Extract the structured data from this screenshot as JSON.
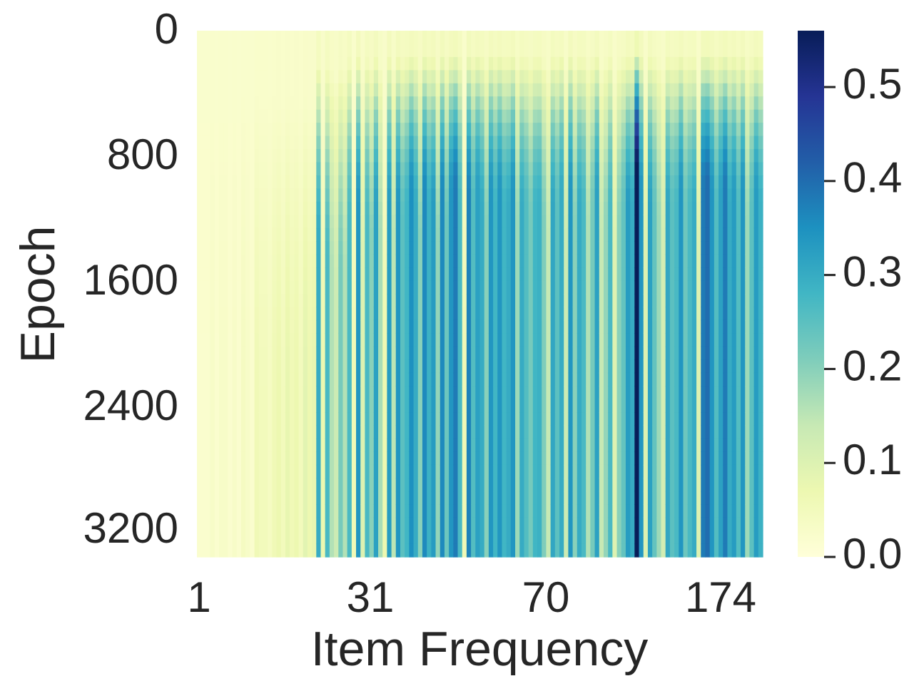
{
  "chart_data": {
    "type": "heatmap",
    "xlabel": "Item Frequency",
    "ylabel": "Epoch",
    "x_tick_labels": [
      "1",
      "31",
      "70",
      "174"
    ],
    "y_tick_labels": [
      "0",
      "800",
      "1600",
      "2400",
      "3200"
    ],
    "colorbar": {
      "colormap": "YlGnBu",
      "range": [
        0.0,
        0.56
      ],
      "tick_labels": [
        "0.0",
        "0.1",
        "0.2",
        "0.3",
        "0.4",
        "0.5"
      ],
      "tick_values": [
        0.0,
        0.1,
        0.2,
        0.3,
        0.4,
        0.5
      ]
    },
    "epoch_range": [
      0,
      3400
    ],
    "column_final_values": [
      0.02,
      0.02,
      0.02,
      0.03,
      0.02,
      0.03,
      0.03,
      0.02,
      0.03,
      0.02,
      0.04,
      0.03,
      0.02,
      0.06,
      0.05,
      0.05,
      0.04,
      0.06,
      0.07,
      0.05,
      0.08,
      0.06,
      0.07,
      0.05,
      0.09,
      0.07,
      0.08,
      0.3,
      0.07,
      0.27,
      0.16,
      0.13,
      0.22,
      0.16,
      0.27,
      0.06,
      0.34,
      0.1,
      0.27,
      0.2,
      0.32,
      0.17,
      0.07,
      0.33,
      0.15,
      0.34,
      0.25,
      0.28,
      0.35,
      0.3,
      0.2,
      0.36,
      0.29,
      0.33,
      0.19,
      0.36,
      0.23,
      0.34,
      0.38,
      0.27,
      0.06,
      0.37,
      0.26,
      0.32,
      0.3,
      0.2,
      0.34,
      0.28,
      0.34,
      0.28,
      0.3,
      0.34,
      0.18,
      0.3,
      0.26,
      0.22,
      0.28,
      0.29,
      0.21,
      0.14,
      0.31,
      0.25,
      0.3,
      0.13,
      0.34,
      0.2,
      0.3,
      0.27,
      0.16,
      0.22,
      0.32,
      0.14,
      0.19,
      0.27,
      0.1,
      0.2,
      0.24,
      0.33,
      0.3,
      0.56,
      0.34,
      0.1,
      0.32,
      0.24,
      0.18,
      0.12,
      0.31,
      0.25,
      0.27,
      0.34,
      0.23,
      0.27,
      0.3,
      0.1,
      0.38,
      0.4,
      0.34,
      0.26,
      0.32,
      0.38,
      0.3,
      0.33,
      0.26,
      0.34,
      0.18,
      0.25,
      0.33,
      0.29
    ],
    "column_onset_fraction": [
      0.5,
      0.5,
      0.5,
      0.5,
      0.5,
      0.5,
      0.5,
      0.5,
      0.5,
      0.5,
      0.5,
      0.5,
      0.5,
      0.5,
      0.5,
      0.5,
      0.5,
      0.5,
      0.5,
      0.5,
      0.5,
      0.5,
      0.5,
      0.5,
      0.5,
      0.5,
      0.5,
      0.25,
      0.5,
      0.28,
      0.3,
      0.35,
      0.3,
      0.3,
      0.22,
      0.5,
      0.2,
      0.3,
      0.22,
      0.25,
      0.2,
      0.25,
      0.5,
      0.2,
      0.25,
      0.2,
      0.22,
      0.2,
      0.18,
      0.2,
      0.25,
      0.18,
      0.2,
      0.2,
      0.25,
      0.18,
      0.22,
      0.18,
      0.17,
      0.2,
      0.5,
      0.18,
      0.2,
      0.17,
      0.2,
      0.22,
      0.18,
      0.2,
      0.18,
      0.2,
      0.2,
      0.18,
      0.22,
      0.2,
      0.2,
      0.22,
      0.2,
      0.2,
      0.22,
      0.25,
      0.2,
      0.2,
      0.18,
      0.25,
      0.18,
      0.22,
      0.2,
      0.2,
      0.22,
      0.2,
      0.18,
      0.25,
      0.22,
      0.2,
      0.28,
      0.22,
      0.2,
      0.2,
      0.2,
      0.15,
      0.18,
      0.28,
      0.2,
      0.2,
      0.22,
      0.25,
      0.2,
      0.2,
      0.2,
      0.18,
      0.2,
      0.2,
      0.2,
      0.28,
      0.17,
      0.17,
      0.18,
      0.2,
      0.18,
      0.17,
      0.2,
      0.18,
      0.2,
      0.18,
      0.22,
      0.2,
      0.18,
      0.2
    ]
  }
}
